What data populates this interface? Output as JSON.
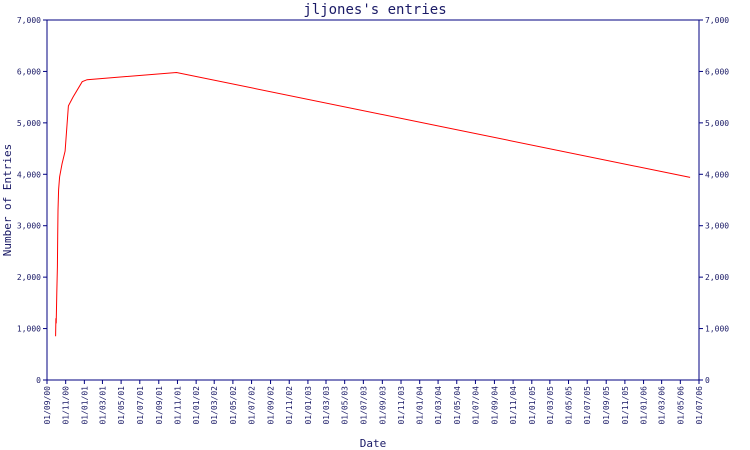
{
  "chart_data": {
    "type": "line",
    "title": "jljones's entries",
    "xlabel": "Date",
    "ylabel": "Number of Entries",
    "ylim": [
      0,
      7000
    ],
    "yticks": [
      0,
      1000,
      2000,
      3000,
      4000,
      5000,
      6000,
      7000
    ],
    "ytick_labels": [
      "0",
      "1,000",
      "2,000",
      "3,000",
      "4,000",
      "5,000",
      "6,000",
      "7,000"
    ],
    "xlim": [
      "2000-09-01",
      "2006-07-01"
    ],
    "xtick_labels": [
      "01/09/00",
      "01/11/00",
      "01/01/01",
      "01/03/01",
      "01/05/01",
      "01/07/01",
      "01/09/01",
      "01/11/01",
      "01/01/02",
      "01/03/02",
      "01/05/02",
      "01/07/02",
      "01/09/02",
      "01/11/02",
      "01/01/03",
      "01/03/03",
      "01/05/03",
      "01/07/03",
      "01/09/03",
      "01/11/03",
      "01/01/04",
      "01/03/04",
      "01/05/04",
      "01/07/04",
      "01/09/04",
      "01/11/04",
      "01/01/05",
      "01/03/05",
      "01/05/05",
      "01/07/05",
      "01/09/05",
      "01/11/05",
      "01/01/06",
      "01/03/06",
      "01/05/06",
      "01/07/06"
    ],
    "xtick_dates": [
      "2000-09-01",
      "2000-11-01",
      "2001-01-01",
      "2001-03-01",
      "2001-05-01",
      "2001-07-01",
      "2001-09-01",
      "2001-11-01",
      "2002-01-01",
      "2002-03-01",
      "2002-05-01",
      "2002-07-01",
      "2002-09-01",
      "2002-11-01",
      "2003-01-01",
      "2003-03-01",
      "2003-05-01",
      "2003-07-01",
      "2003-09-01",
      "2003-11-01",
      "2004-01-01",
      "2004-03-01",
      "2004-05-01",
      "2004-07-01",
      "2004-09-01",
      "2004-11-01",
      "2005-01-01",
      "2005-03-01",
      "2005-05-01",
      "2005-07-01",
      "2005-09-01",
      "2005-11-01",
      "2006-01-01",
      "2006-03-01",
      "2006-05-01",
      "2006-07-01"
    ],
    "series": [
      {
        "color": "#ff0000",
        "points": [
          {
            "x": "2000-09-29",
            "y": 850
          },
          {
            "x": "2000-09-30",
            "y": 1200
          },
          {
            "x": "2000-10-01",
            "y": 1100
          },
          {
            "x": "2000-10-03",
            "y": 1700
          },
          {
            "x": "2000-10-05",
            "y": 2200
          },
          {
            "x": "2000-10-06",
            "y": 2800
          },
          {
            "x": "2000-10-07",
            "y": 3300
          },
          {
            "x": "2000-10-09",
            "y": 3700
          },
          {
            "x": "2000-10-12",
            "y": 3950
          },
          {
            "x": "2000-10-20",
            "y": 4200
          },
          {
            "x": "2000-10-30",
            "y": 4450
          },
          {
            "x": "2000-11-10",
            "y": 5330
          },
          {
            "x": "2000-11-25",
            "y": 5500
          },
          {
            "x": "2000-12-25",
            "y": 5800
          },
          {
            "x": "2001-01-10",
            "y": 5840
          },
          {
            "x": "2001-10-29",
            "y": 5980
          },
          {
            "x": "2006-06-02",
            "y": 3940
          }
        ]
      }
    ],
    "grid": false,
    "colors": {
      "axis": "#000080",
      "text": "#1a1a66",
      "line": "#ff0000"
    }
  }
}
